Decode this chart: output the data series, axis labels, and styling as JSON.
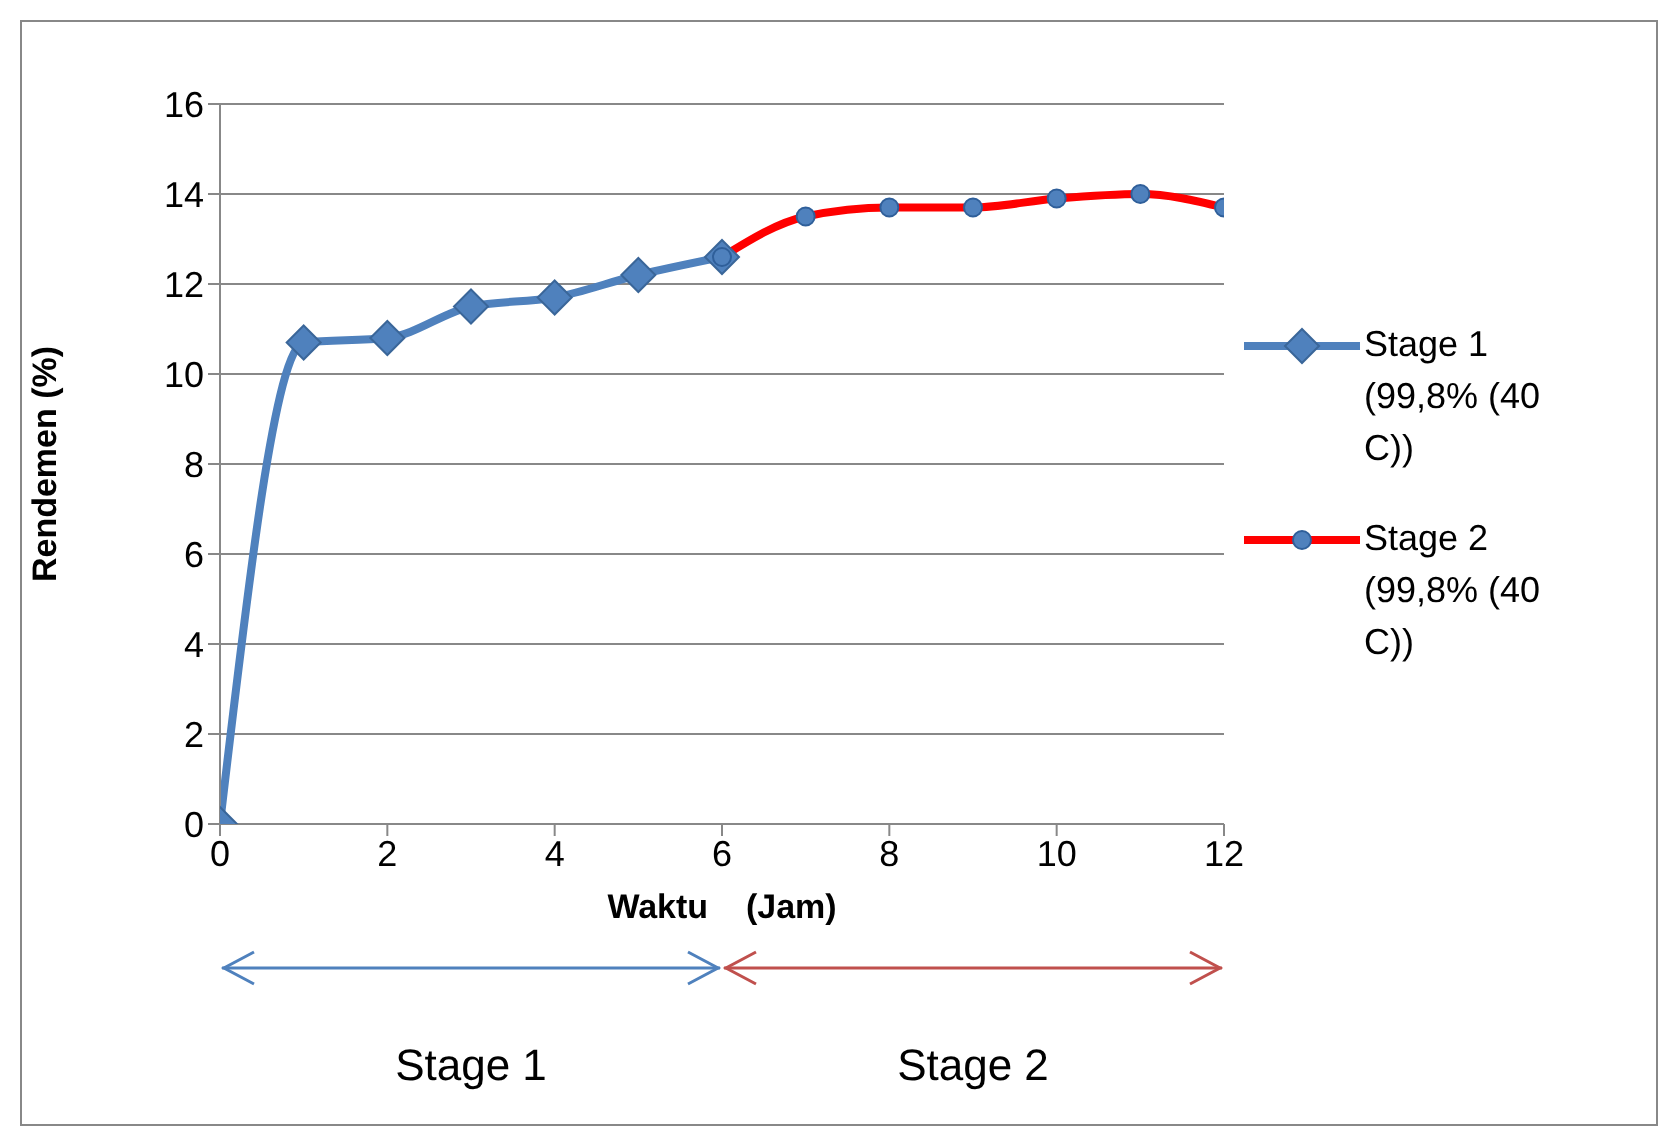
{
  "chart_data": {
    "type": "line",
    "xlabel": "Waktu    (Jam)",
    "ylabel": "Rendemen (%)",
    "xlim": [
      0,
      12
    ],
    "xticks": [
      0,
      2,
      4,
      6,
      8,
      10,
      12
    ],
    "ylim": [
      0,
      16
    ],
    "yticks": [
      0,
      2,
      4,
      6,
      8,
      10,
      12,
      14,
      16
    ],
    "grid": "y",
    "legend": "right",
    "line_style": "solid",
    "series": [
      {
        "name": "Stage 1 (99,8% (40 C))",
        "color": "#4f81bd",
        "marker": "diamond",
        "x": [
          0,
          1,
          2,
          3,
          4,
          5,
          6
        ],
        "values": [
          0,
          10.7,
          10.8,
          11.5,
          11.7,
          12.2,
          12.6
        ]
      },
      {
        "name": "Stage 2 (99,8% (40 C))",
        "color": "#ff0000",
        "marker": "circle",
        "x": [
          6,
          7,
          8,
          9,
          10,
          11,
          12
        ],
        "values": [
          12.6,
          13.5,
          13.7,
          13.7,
          13.9,
          14.0,
          13.7
        ]
      }
    ],
    "annotations": [
      "Stage 1",
      "Stage 2"
    ]
  }
}
